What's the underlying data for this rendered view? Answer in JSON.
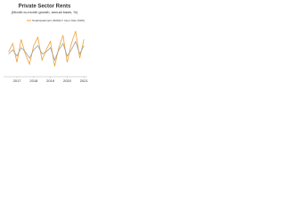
{
  "chart_data": {
    "type": "line",
    "title": "Private Sector Rents",
    "subtitle": "(Month-to-month growth, annual basis, %)",
    "x": [
      2016.5,
      2016.75,
      2017,
      2017.25,
      2017.5,
      2017.75,
      2018,
      2018.25,
      2018.5,
      2018.75,
      2019,
      2019.25,
      2019.5,
      2019.75,
      2020,
      2020.25,
      2020.5,
      2020.75,
      2021
    ],
    "xlim": [
      2016.2,
      2021.2
    ],
    "xticks": [
      2017,
      2018,
      2019,
      2020,
      2021
    ],
    "ylim": [
      -10,
      15
    ],
    "series": [
      {
        "name": "Small Apartment (NOK)",
        "color": "#f0a030",
        "values": [
          2,
          6,
          -3,
          8,
          1,
          -4,
          5,
          9,
          -2,
          3,
          7,
          -5,
          4,
          10,
          -3,
          6,
          12,
          -1,
          8
        ]
      },
      {
        "name": "Inner Oslo (NOK)",
        "color": "#a0a0a0",
        "values": [
          1,
          3,
          0,
          4,
          2,
          -1,
          3,
          5,
          1,
          2,
          4,
          -2,
          3,
          6,
          0,
          3,
          7,
          1,
          5
        ]
      }
    ]
  }
}
